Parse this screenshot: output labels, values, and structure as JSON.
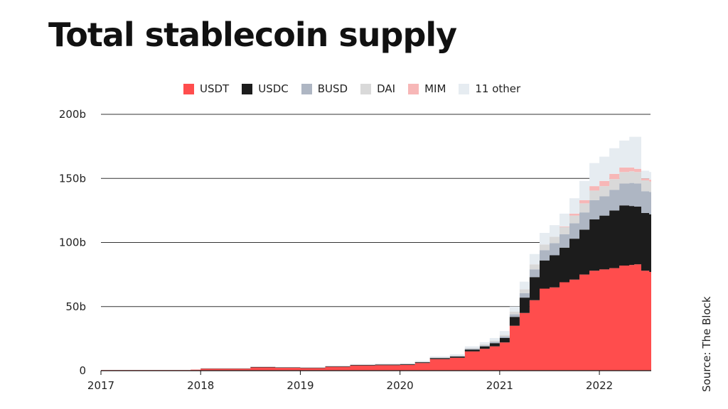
{
  "title": "Total stablecoin supply",
  "source": "Source: The Block",
  "chart_data": {
    "type": "area",
    "stacked": true,
    "step": true,
    "x_label_ticks": [
      "2017",
      "2018",
      "2019",
      "2020",
      "2021",
      "2022"
    ],
    "y_ticks": [
      "0",
      "50b",
      "100b",
      "150b",
      "200b"
    ],
    "ylim": [
      0,
      200
    ],
    "xlim": [
      2017.0,
      2022.52
    ],
    "grid": "horizontal",
    "legend_placement": "top",
    "x": [
      2017.0,
      2017.5,
      2017.9,
      2018.0,
      2018.5,
      2018.75,
      2019.0,
      2019.25,
      2019.5,
      2019.75,
      2020.0,
      2020.15,
      2020.3,
      2020.5,
      2020.65,
      2020.8,
      2020.9,
      2021.0,
      2021.1,
      2021.2,
      2021.3,
      2021.4,
      2021.5,
      2021.6,
      2021.7,
      2021.8,
      2021.9,
      2022.0,
      2022.1,
      2022.2,
      2022.3,
      2022.35,
      2022.42,
      2022.5
    ],
    "series": [
      {
        "name": "USDT",
        "color": "#ff4d4d",
        "values": [
          0.5,
          0.5,
          0.8,
          1.5,
          2.5,
          2.2,
          2.0,
          3.0,
          4.0,
          4.2,
          4.5,
          6.0,
          9.0,
          10.0,
          15.0,
          17.0,
          19.0,
          22.0,
          35.0,
          45.0,
          55.0,
          64.0,
          65.0,
          69.0,
          71.0,
          75.0,
          78.0,
          79.0,
          80.0,
          82.0,
          82.5,
          83.0,
          78.0,
          77.0
        ]
      },
      {
        "name": "USDC",
        "color": "#1c1c1c",
        "values": [
          0,
          0,
          0,
          0.2,
          0.4,
          0.3,
          0.3,
          0.4,
          0.5,
          0.5,
          0.5,
          0.6,
          0.8,
          1.0,
          1.5,
          2.0,
          2.5,
          3.5,
          7.0,
          12.0,
          18.0,
          22.0,
          25.0,
          27.0,
          32.0,
          35.0,
          40.0,
          42.0,
          45.0,
          47.0,
          46.0,
          45.0,
          45.0,
          45.0
        ]
      },
      {
        "name": "BUSD",
        "color": "#aeb6c3",
        "values": [
          0,
          0,
          0,
          0,
          0,
          0,
          0,
          0,
          0,
          0.1,
          0.2,
          0.2,
          0.3,
          0.4,
          0.6,
          0.8,
          1.0,
          1.2,
          2.0,
          3.5,
          6.0,
          8.0,
          9.5,
          10.5,
          12.0,
          13.5,
          15.0,
          15.0,
          16.0,
          17.0,
          18.0,
          18.0,
          17.0,
          17.5
        ]
      },
      {
        "name": "DAI",
        "color": "#d9d9d9",
        "values": [
          0,
          0,
          0,
          0,
          0.2,
          0.2,
          0.3,
          0.3,
          0.3,
          0.3,
          0.3,
          0.3,
          0.3,
          0.4,
          0.6,
          0.8,
          1.0,
          1.2,
          2.0,
          3.0,
          4.0,
          4.5,
          5.0,
          5.5,
          6.0,
          7.0,
          7.5,
          8.0,
          8.5,
          9.0,
          9.0,
          9.0,
          8.5,
          8.0
        ]
      },
      {
        "name": "MIM",
        "color": "#f7b7b7",
        "values": [
          0,
          0,
          0,
          0,
          0,
          0,
          0,
          0,
          0,
          0,
          0,
          0,
          0,
          0,
          0,
          0,
          0,
          0,
          0,
          0,
          0,
          0,
          0,
          0.5,
          1.5,
          2.5,
          3.5,
          4.0,
          4.0,
          3.5,
          3.0,
          2.5,
          1.5,
          1.5
        ]
      },
      {
        "name": "11 other",
        "color": "#e6ecf1",
        "values": [
          0,
          0,
          0,
          0,
          0.1,
          0.1,
          0.2,
          0.3,
          0.4,
          0.5,
          0.5,
          0.6,
          0.8,
          1.0,
          1.3,
          1.6,
          2.0,
          3.0,
          4.0,
          6.0,
          8.0,
          9.0,
          9.0,
          10.0,
          12.0,
          15.0,
          18.0,
          19.0,
          20.0,
          21.0,
          24.0,
          25.0,
          6.0,
          6.0
        ]
      }
    ]
  }
}
